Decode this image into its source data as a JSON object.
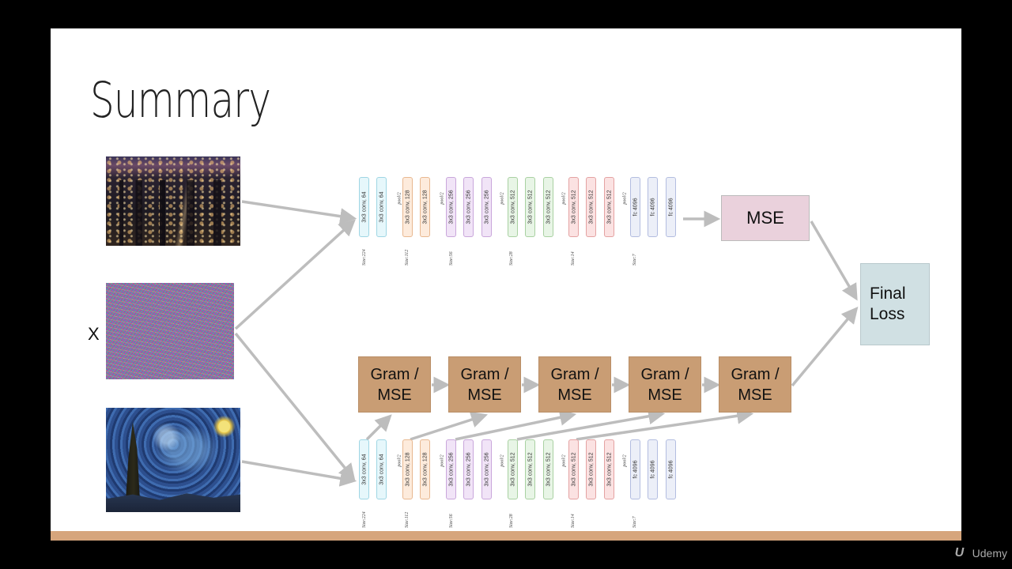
{
  "slide": {
    "title": "Summary",
    "input_label": "X"
  },
  "images": {
    "content": "city-night-photo",
    "generated": "random-noise-image",
    "style": "starry-night-painting"
  },
  "network": {
    "blocks": [
      {
        "label": "3x3 conv, 64",
        "group": "c64"
      },
      {
        "label": "3x3 conv, 64",
        "group": "c64"
      },
      {
        "label": "3x3 conv, 128",
        "group": "c128"
      },
      {
        "label": "3x3 conv, 128",
        "group": "c128"
      },
      {
        "label": "3x3 conv, 256",
        "group": "c256"
      },
      {
        "label": "3x3 conv, 256",
        "group": "c256"
      },
      {
        "label": "3x3 conv, 256",
        "group": "c256"
      },
      {
        "label": "3x3 conv, 512",
        "group": "c512a"
      },
      {
        "label": "3x3 conv, 512",
        "group": "c512a"
      },
      {
        "label": "3x3 conv, 512",
        "group": "c512a"
      },
      {
        "label": "3x3 conv, 512",
        "group": "c512b"
      },
      {
        "label": "3x3 conv, 512",
        "group": "c512b"
      },
      {
        "label": "3x3 conv, 512",
        "group": "c512b"
      },
      {
        "label": "fc 4096",
        "group": "cfc"
      },
      {
        "label": "fc 4096",
        "group": "cfc"
      },
      {
        "label": "fc 4096",
        "group": "cfc"
      }
    ],
    "pool_label": "pool/2",
    "size_labels": [
      "Size:224",
      "Size:112",
      "Size:56",
      "Size:28",
      "Size:14",
      "Size:7"
    ]
  },
  "boxes": {
    "mse": "MSE",
    "final_loss_line1": "Final",
    "final_loss_line2": "Loss",
    "gram_line1": "Gram /",
    "gram_line2": "MSE"
  },
  "colors": {
    "mse_box": "#ead1dc",
    "final_box": "#d0e0e3",
    "gram_box": "#c99d74",
    "arrow": "#bdbdbd",
    "bottom_bar": "#d6a57c"
  },
  "watermark": {
    "brand": "Udemy",
    "icon": "udemy-logo-icon"
  }
}
